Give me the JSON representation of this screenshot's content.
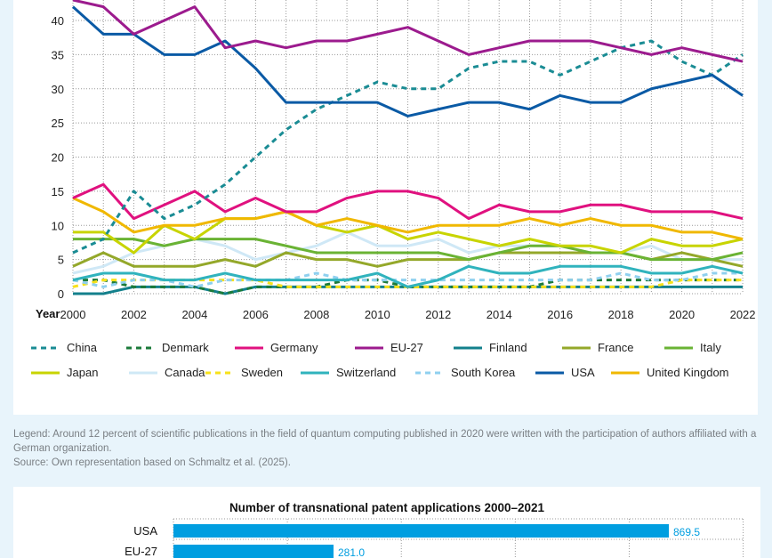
{
  "chart_data": [
    {
      "type": "line",
      "xlabel": "Year",
      "ylabel": "",
      "x": [
        2000,
        2001,
        2002,
        2003,
        2004,
        2005,
        2006,
        2007,
        2008,
        2009,
        2010,
        2011,
        2012,
        2013,
        2014,
        2015,
        2016,
        2017,
        2018,
        2019,
        2020,
        2021,
        2022
      ],
      "x_ticks": [
        "2000",
        "2002",
        "2004",
        "2006",
        "2008",
        "2010",
        "2012",
        "2014",
        "2016",
        "2018",
        "2020",
        "2022"
      ],
      "y_ticks": [
        "0",
        "5",
        "10",
        "15",
        "20",
        "25",
        "30",
        "35",
        "40"
      ],
      "ylim": [
        0,
        43
      ],
      "grid": true,
      "legend_placement": "bottom",
      "series": [
        {
          "name": "China",
          "color": "#1a8c94",
          "dashed": true,
          "values": [
            6,
            8,
            15,
            11,
            13,
            16,
            20,
            24,
            27,
            29,
            31,
            30,
            30,
            33,
            34,
            34,
            32,
            34,
            36,
            37,
            34,
            32,
            35
          ]
        },
        {
          "name": "Denmark",
          "color": "#1b7a3a",
          "dashed": true,
          "values": [
            2,
            2,
            1,
            1,
            1,
            0,
            1,
            1,
            1,
            2,
            2,
            1,
            1,
            1,
            1,
            1,
            2,
            2,
            2,
            2,
            2,
            2,
            2
          ]
        },
        {
          "name": "Germany",
          "color": "#e0117f",
          "dashed": false,
          "values": [
            14,
            16,
            11,
            13,
            15,
            12,
            14,
            12,
            12,
            14,
            15,
            15,
            14,
            11,
            13,
            12,
            12,
            13,
            13,
            12,
            12,
            12,
            11
          ]
        },
        {
          "name": "EU-27",
          "color": "#9c1b8e",
          "dashed": false,
          "values": [
            43,
            42,
            38,
            40,
            42,
            36,
            37,
            36,
            37,
            37,
            38,
            39,
            37,
            35,
            36,
            37,
            37,
            37,
            36,
            35,
            36,
            35,
            34
          ]
        },
        {
          "name": "Finland",
          "color": "#13808c",
          "dashed": false,
          "values": [
            0,
            0,
            1,
            1,
            1,
            0,
            1,
            1,
            1,
            1,
            1,
            1,
            1,
            1,
            1,
            1,
            1,
            1,
            1,
            1,
            1,
            1,
            1
          ]
        },
        {
          "name": "France",
          "color": "#94a82a",
          "dashed": false,
          "values": [
            4,
            6,
            4,
            4,
            4,
            5,
            4,
            6,
            5,
            5,
            4,
            5,
            5,
            5,
            6,
            6,
            6,
            6,
            6,
            5,
            6,
            5,
            4
          ]
        },
        {
          "name": "Italy",
          "color": "#6ab334",
          "dashed": false,
          "values": [
            8,
            8,
            8,
            7,
            8,
            8,
            8,
            7,
            6,
            6,
            6,
            6,
            6,
            5,
            6,
            7,
            7,
            6,
            6,
            5,
            5,
            5,
            6
          ]
        },
        {
          "name": "Japan",
          "color": "#c8d400",
          "dashed": false,
          "values": [
            9,
            9,
            6,
            10,
            8,
            11,
            11,
            12,
            10,
            9,
            10,
            8,
            9,
            8,
            7,
            8,
            7,
            7,
            6,
            8,
            7,
            7,
            8
          ]
        },
        {
          "name": "Canada",
          "color": "#cfe8f6",
          "dashed": false,
          "values": [
            3,
            4,
            6,
            7,
            8,
            7,
            5,
            6,
            7,
            9,
            7,
            7,
            8,
            6,
            7,
            7,
            7,
            6,
            6,
            7,
            5,
            5,
            5
          ]
        },
        {
          "name": "Sweden",
          "color": "#f7e11a",
          "dashed": true,
          "values": [
            1,
            2,
            2,
            2,
            2,
            2,
            2,
            1,
            1,
            1,
            1,
            1,
            1,
            1,
            1,
            1,
            1,
            1,
            1,
            1,
            2,
            2,
            2
          ]
        },
        {
          "name": "Switzerland",
          "color": "#30b3bd",
          "dashed": false,
          "values": [
            2,
            3,
            3,
            2,
            2,
            3,
            2,
            2,
            2,
            2,
            3,
            1,
            2,
            4,
            3,
            3,
            4,
            4,
            4,
            3,
            3,
            4,
            3
          ]
        },
        {
          "name": "South Korea",
          "color": "#8fd0ef",
          "dashed": true,
          "values": [
            2,
            1,
            2,
            2,
            1,
            2,
            2,
            2,
            3,
            2,
            2,
            2,
            2,
            2,
            2,
            2,
            2,
            2,
            3,
            2,
            2,
            3,
            3
          ]
        },
        {
          "name": "USA",
          "color": "#0a5aa5",
          "dashed": false,
          "values": [
            42,
            38,
            38,
            35,
            35,
            37,
            33,
            28,
            28,
            28,
            28,
            26,
            27,
            28,
            28,
            27,
            29,
            28,
            28,
            30,
            31,
            32,
            29
          ]
        },
        {
          "name": "United Kingdom",
          "color": "#f0b800",
          "dashed": false,
          "values": [
            14,
            12,
            9,
            10,
            10,
            11,
            11,
            12,
            10,
            11,
            10,
            9,
            10,
            10,
            10,
            11,
            10,
            11,
            10,
            10,
            9,
            9,
            8
          ]
        }
      ]
    },
    {
      "type": "bar",
      "orientation": "horizontal",
      "title": "Number of transnational patent applications 2000–2021",
      "categories": [
        "USA",
        "EU-27"
      ],
      "values": [
        869.5,
        281.0
      ],
      "value_labels": [
        "869.5",
        "281.0"
      ],
      "color": "#009ee0",
      "xlim": [
        0,
        1000
      ],
      "grid": true
    }
  ],
  "note": {
    "legend_text": "Legend: Around 12 percent of scientific publications in the field of quantum computing published in 2020 were written with the participation of authors affiliated with a German organization.",
    "source_text": "Source: Own representation based on Schmaltz et al. (2025)."
  }
}
